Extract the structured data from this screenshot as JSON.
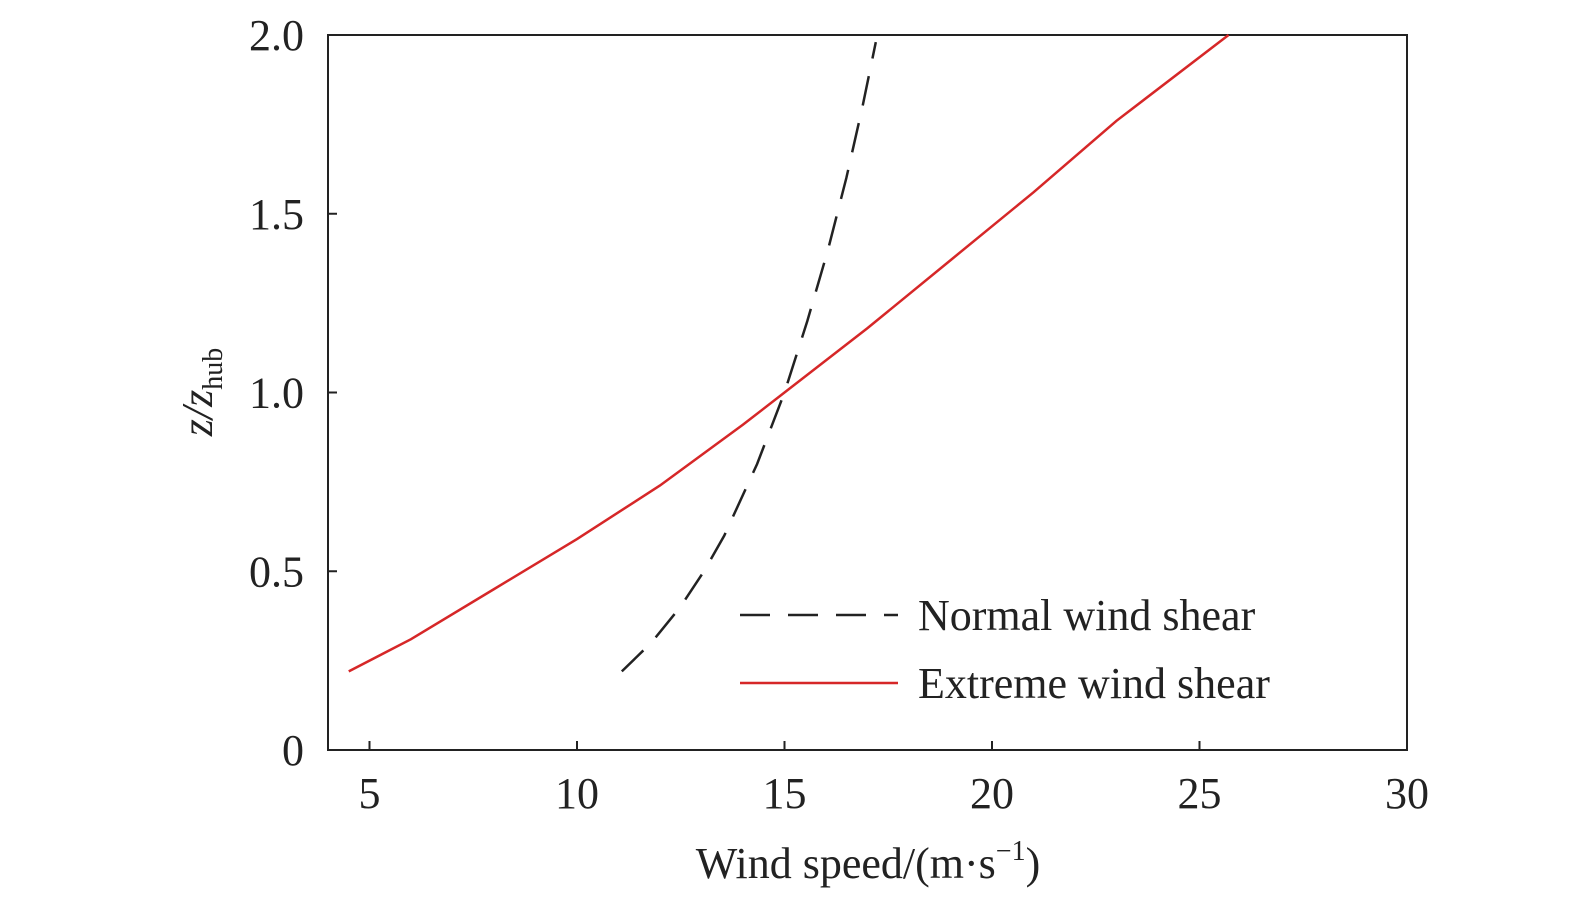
{
  "chart_data": {
    "type": "line",
    "xlabel": {
      "text": "Wind speed/(m·s",
      "sup": "−1",
      "tail": ")"
    },
    "ylabel": {
      "text": "z/z",
      "sub": "hub"
    },
    "xlim": [
      4,
      30
    ],
    "xticks": [
      5,
      10,
      15,
      20,
      25,
      30
    ],
    "ylim": [
      0,
      2
    ],
    "yticks": [
      0,
      0.5,
      {
        "value": 1,
        "label": "1.0"
      },
      1.5,
      {
        "value": 2,
        "label": "2.0"
      }
    ],
    "legend": "lower right",
    "series": [
      {
        "name": "Normal wind shear",
        "color": "#222222",
        "linestyle": "dashed",
        "x": [
          11.08,
          11.79,
          12.49,
          13.06,
          13.55,
          14.34,
          15,
          15.55,
          16.05,
          16.49,
          16.88,
          17.2
        ],
        "values": [
          0.22,
          0.3,
          0.4,
          0.5,
          0.6,
          0.8,
          1.0,
          1.2,
          1.4,
          1.6,
          1.8,
          1.98
        ]
      },
      {
        "name": "Extreme wind shear",
        "color": "#d62728",
        "linestyle": "solid",
        "x": [
          4.5,
          6,
          8,
          10,
          12,
          14,
          15,
          17,
          19,
          21,
          23,
          25.7
        ],
        "values": [
          0.22,
          0.31,
          0.45,
          0.59,
          0.74,
          0.91,
          1.0,
          1.18,
          1.37,
          1.56,
          1.76,
          2.0
        ]
      }
    ]
  }
}
